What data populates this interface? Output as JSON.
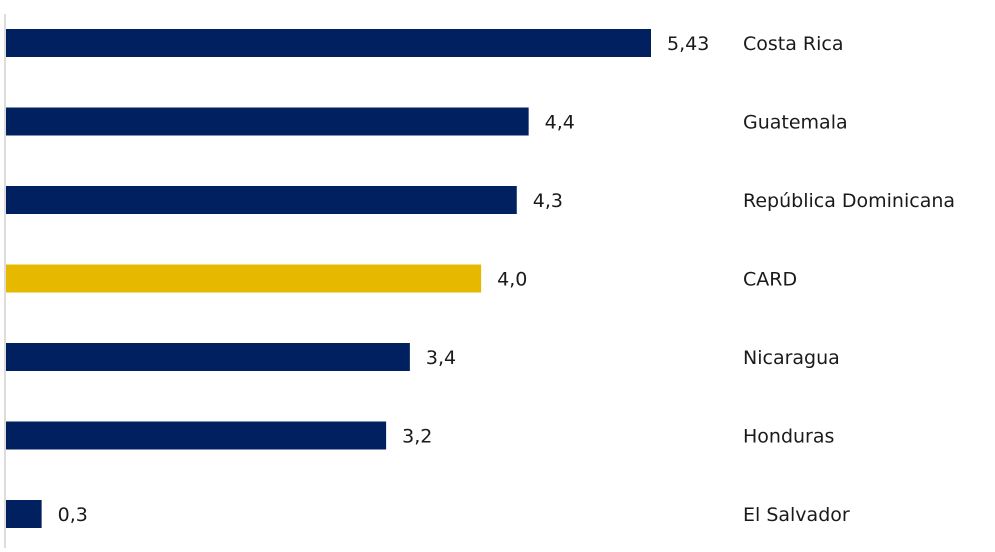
{
  "chart_data": {
    "type": "bar",
    "orientation": "horizontal",
    "categories": [
      "Costa Rica",
      "Guatemala",
      "República Dominicana",
      "CARD",
      "Nicaragua",
      "Honduras",
      "El Salvador"
    ],
    "values": [
      5.43,
      4.4,
      4.3,
      4.0,
      3.4,
      3.2,
      0.3
    ],
    "value_labels": [
      "5,43",
      "4,4",
      "4,3",
      "4,0",
      "3,4",
      "3,2",
      "0,3"
    ],
    "colors": [
      "#002060",
      "#002060",
      "#002060",
      "#E6B800",
      "#002060",
      "#002060",
      "#002060"
    ],
    "xlim": [
      0,
      5.43
    ],
    "grid": false,
    "legend": "none"
  }
}
